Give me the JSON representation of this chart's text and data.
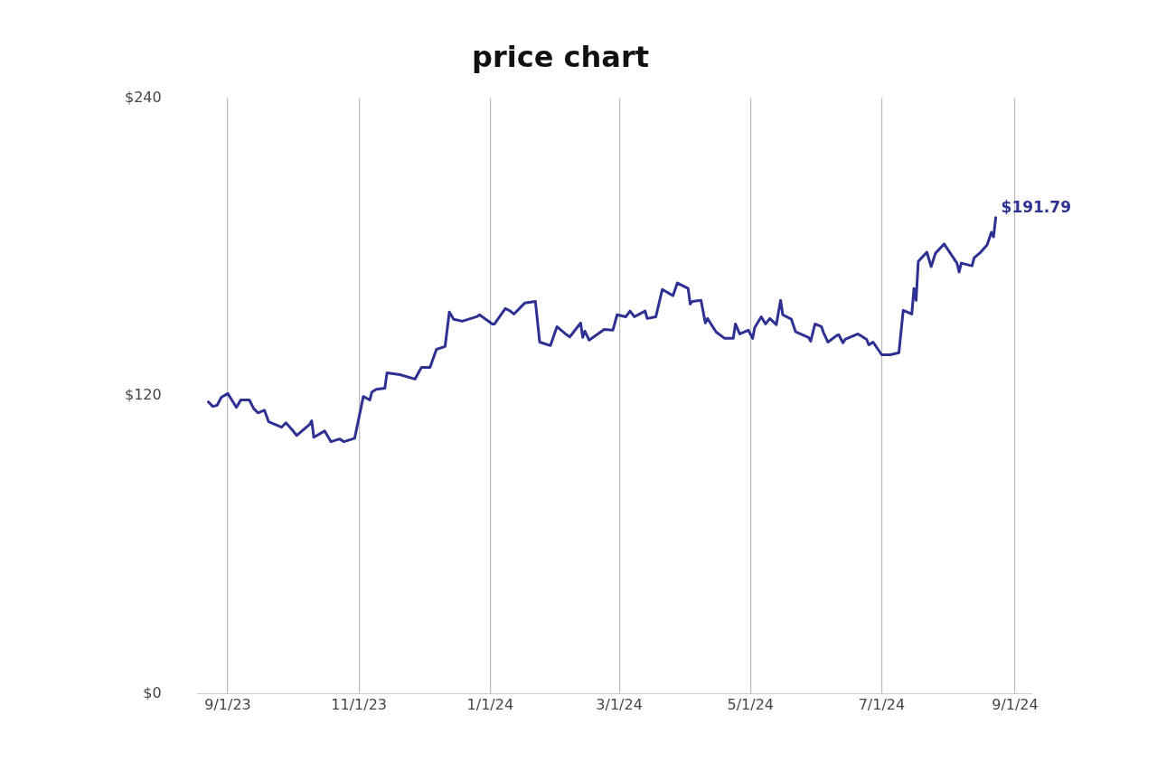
{
  "chart_data": {
    "type": "line",
    "title": "price chart",
    "x": [
      "2023-08-23",
      "2023-08-25",
      "2023-08-27",
      "2023-08-29",
      "2023-09-01",
      "2023-09-05",
      "2023-09-07",
      "2023-09-11",
      "2023-09-13",
      "2023-09-15",
      "2023-09-18",
      "2023-09-20",
      "2023-09-26",
      "2023-09-28",
      "2023-10-01",
      "2023-10-03",
      "2023-10-09",
      "2023-10-10",
      "2023-10-11",
      "2023-10-16",
      "2023-10-19",
      "2023-10-23",
      "2023-10-25",
      "2023-10-30",
      "2023-11-03",
      "2023-11-06",
      "2023-11-07",
      "2023-11-09",
      "2023-11-13",
      "2023-11-14",
      "2023-11-20",
      "2023-11-27",
      "2023-11-30",
      "2023-12-04",
      "2023-12-07",
      "2023-12-11",
      "2023-12-13",
      "2023-12-15",
      "2023-12-19",
      "2023-12-26",
      "2023-12-27",
      "2024-01-02",
      "2024-01-03",
      "2024-01-08",
      "2024-01-10",
      "2024-01-12",
      "2024-01-17",
      "2024-01-22",
      "2024-01-24",
      "2024-01-29",
      "2024-02-01",
      "2024-02-05",
      "2024-02-07",
      "2024-02-12",
      "2024-02-13",
      "2024-02-14",
      "2024-02-16",
      "2024-02-23",
      "2024-02-27",
      "2024-02-29",
      "2024-03-04",
      "2024-03-05",
      "2024-03-06",
      "2024-03-08",
      "2024-03-13",
      "2024-03-14",
      "2024-03-18",
      "2024-03-21",
      "2024-03-26",
      "2024-03-28",
      "2024-04-02",
      "2024-04-03",
      "2024-04-04",
      "2024-04-08",
      "2024-04-10",
      "2024-04-11",
      "2024-04-15",
      "2024-04-19",
      "2024-04-23",
      "2024-04-24",
      "2024-04-26",
      "2024-04-30",
      "2024-05-02",
      "2024-05-03",
      "2024-05-06",
      "2024-05-08",
      "2024-05-10",
      "2024-05-13",
      "2024-05-15",
      "2024-05-16",
      "2024-05-20",
      "2024-05-22",
      "2024-05-28",
      "2024-05-29",
      "2024-05-31",
      "2024-06-03",
      "2024-06-04",
      "2024-06-06",
      "2024-06-10",
      "2024-06-11",
      "2024-06-13",
      "2024-06-14",
      "2024-06-20",
      "2024-06-24",
      "2024-06-25",
      "2024-06-27",
      "2024-07-01",
      "2024-07-05",
      "2024-07-09",
      "2024-07-11",
      "2024-07-15",
      "2024-07-16",
      "2024-07-17",
      "2024-07-18",
      "2024-07-22",
      "2024-07-24",
      "2024-07-26",
      "2024-07-30",
      "2024-08-05",
      "2024-08-06",
      "2024-08-07",
      "2024-08-12",
      "2024-08-13",
      "2024-08-16",
      "2024-08-19",
      "2024-08-21",
      "2024-08-22",
      "2024-08-23"
    ],
    "series": [
      {
        "color": "#2e3192",
        "values": [
          117.6,
          115.8,
          116.2,
          119.5,
          121,
          115.4,
          118.4,
          118.4,
          115,
          113.2,
          114.3,
          109.6,
          107.4,
          109.2,
          106.3,
          104.1,
          108.5,
          110,
          103.4,
          105.9,
          101.6,
          102.7,
          101.6,
          103,
          119.8,
          118.4,
          121.6,
          122.7,
          123.1,
          129.3,
          128.6,
          126.8,
          131.5,
          131.5,
          138.8,
          139.9,
          153.8,
          150.9,
          150.1,
          152,
          152.7,
          149,
          149,
          155.2,
          154.4,
          153,
          157.4,
          158.1,
          141.7,
          140.3,
          147.9,
          145,
          143.8,
          149.4,
          143.6,
          146.1,
          142.5,
          146.8,
          146.5,
          152.7,
          151.9,
          153,
          154.2,
          151.9,
          154.2,
          151.2,
          151.9,
          162.9,
          160.4,
          165.5,
          163.3,
          157,
          158.1,
          158.5,
          149.4,
          151.2,
          145.8,
          143.2,
          143.2,
          149,
          145,
          146.5,
          143.2,
          147.6,
          151.9,
          149,
          151.2,
          148.7,
          158.5,
          152.7,
          150.9,
          145.8,
          143.6,
          142.1,
          149,
          147.9,
          145.4,
          141.7,
          144.3,
          144.7,
          141.4,
          142.8,
          145,
          142.8,
          140.6,
          141.7,
          136.6,
          136.6,
          137.4,
          154.5,
          153,
          163.3,
          158.5,
          174.2,
          177.9,
          172.1,
          177.5,
          181.2,
          173.5,
          169.9,
          173.5,
          172.4,
          175.7,
          177.9,
          180.8,
          185.9,
          184.1,
          191.79
        ]
      }
    ],
    "xlim": [
      "2023-08-18",
      "2024-09-09"
    ],
    "xticks": [
      {
        "value": "2023-09-01",
        "label": "9/1/23"
      },
      {
        "value": "2023-11-01",
        "label": "11/1/23"
      },
      {
        "value": "2024-01-01",
        "label": "1/1/24"
      },
      {
        "value": "2024-03-01",
        "label": "3/1/24"
      },
      {
        "value": "2024-05-01",
        "label": "5/1/24"
      },
      {
        "value": "2024-07-01",
        "label": "7/1/24"
      },
      {
        "value": "2024-09-01",
        "label": "9/1/24"
      }
    ],
    "ylim": [
      0,
      240
    ],
    "yticks": [
      {
        "value": 0,
        "label": "$0"
      },
      {
        "value": 120,
        "label": "$120"
      },
      {
        "value": 240,
        "label": "$240"
      }
    ],
    "grid": "x",
    "legend": false,
    "marker": "none",
    "line_style": "solid",
    "annotations": [
      {
        "text": "$191.79",
        "x": "2024-08-23",
        "y": 191.79
      }
    ]
  }
}
